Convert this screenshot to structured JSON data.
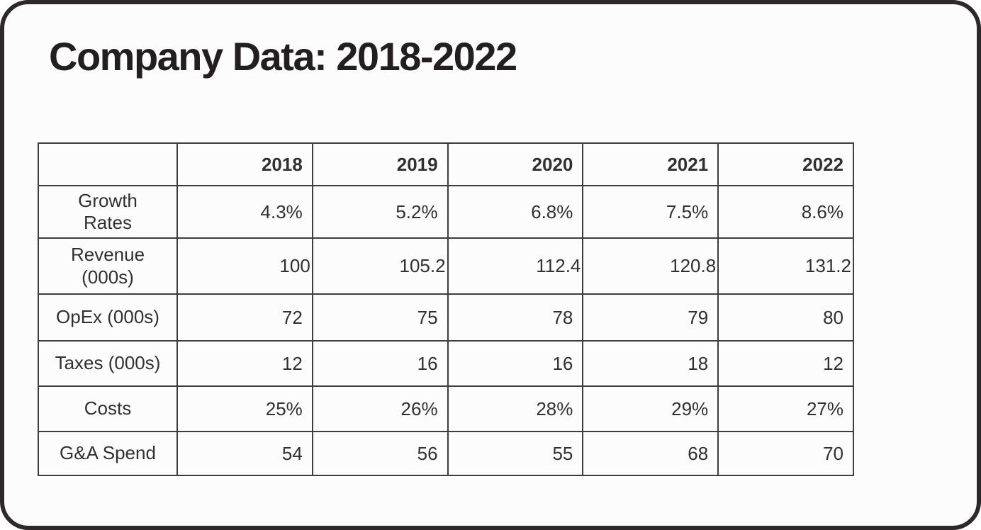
{
  "title": "Company Data: 2018-2022",
  "colors": {
    "frame": "#2d2829",
    "card_bg": "#fcfcfc",
    "table_border": "#3d3d3d",
    "text": "#303030",
    "title_text": "#231f20"
  },
  "table": {
    "columns": [
      "",
      "2018",
      "2019",
      "2020",
      "2021",
      "2022"
    ],
    "rows": [
      {
        "label": "Growth\nRates",
        "values": [
          "4.3%",
          "5.2%",
          "6.8%",
          "7.5%",
          "8.6%"
        ]
      },
      {
        "label": "Revenue\n(000s)",
        "values": [
          "100",
          "105.2",
          "112.4",
          "120.8",
          "131.2"
        ]
      },
      {
        "label": "OpEx (000s)",
        "values": [
          "72",
          "75",
          "78",
          "79",
          "80"
        ]
      },
      {
        "label": "Taxes (000s)",
        "values": [
          "12",
          "16",
          "16",
          "18",
          "12"
        ]
      },
      {
        "label": "Costs",
        "values": [
          "25%",
          "26%",
          "28%",
          "29%",
          "27%"
        ]
      },
      {
        "label": "G&A Spend",
        "values": [
          "54",
          "56",
          "55",
          "68",
          "70"
        ]
      }
    ]
  },
  "chart_data": {
    "type": "table",
    "title": "Company Data: 2018-2022",
    "categories": [
      "2018",
      "2019",
      "2020",
      "2021",
      "2022"
    ],
    "series": [
      {
        "name": "Growth Rates",
        "values": [
          "4.3%",
          "5.2%",
          "6.8%",
          "7.5%",
          "8.6%"
        ]
      },
      {
        "name": "Revenue (000s)",
        "values": [
          100,
          105.2,
          112.4,
          120.8,
          131.2
        ]
      },
      {
        "name": "OpEx (000s)",
        "values": [
          72,
          75,
          78,
          79,
          80
        ]
      },
      {
        "name": "Taxes (000s)",
        "values": [
          12,
          16,
          16,
          18,
          12
        ]
      },
      {
        "name": "Costs",
        "values": [
          "25%",
          "26%",
          "28%",
          "29%",
          "27%"
        ]
      },
      {
        "name": "G&A Spend",
        "values": [
          54,
          56,
          55,
          68,
          70
        ]
      }
    ]
  }
}
